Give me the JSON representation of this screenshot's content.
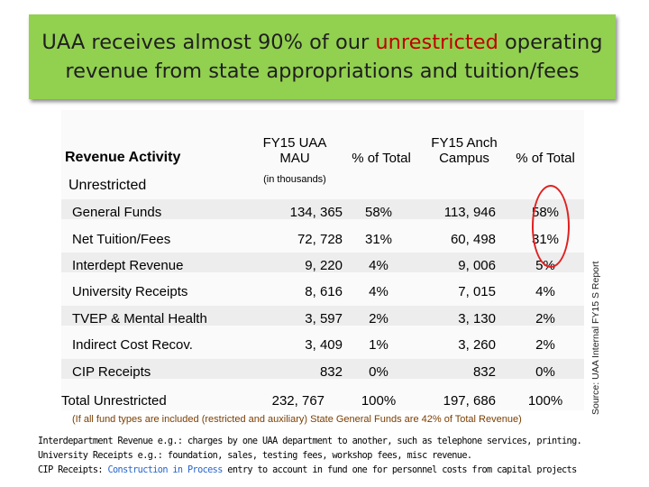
{
  "title": {
    "line1_pre": "UAA receives almost 90% of our ",
    "line1_highlight": "unrestricted",
    "line1_post": " operating",
    "line2": "revenue from state appropriations and tuition/fees"
  },
  "table": {
    "section_header": "Revenue Activity",
    "section_label": "Unrestricted",
    "col_mau_line1": "FY15 UAA",
    "col_mau_line2": "MAU",
    "col_mau_units": "(in thousands)",
    "col_pct1": "% of Total",
    "col_anch_line1": "FY15 Anch",
    "col_anch_line2": "Campus",
    "col_pct2": "% of Total",
    "rows": [
      {
        "label": "General Funds",
        "mau": "134, 365",
        "pct1": "58%",
        "anch": "113, 946",
        "pct2": "58%"
      },
      {
        "label": "Net Tuition/Fees",
        "mau": "72, 728",
        "pct1": "31%",
        "anch": "60, 498",
        "pct2": "31%"
      },
      {
        "label": "Interdept Revenue",
        "mau": "9, 220",
        "pct1": "4%",
        "anch": "9, 006",
        "pct2": "5%"
      },
      {
        "label": "University Receipts",
        "mau": "8, 616",
        "pct1": "4%",
        "anch": "7, 015",
        "pct2": "4%"
      },
      {
        "label": "TVEP & Mental Health",
        "mau": "3, 597",
        "pct1": "2%",
        "anch": "3, 130",
        "pct2": "2%"
      },
      {
        "label": "Indirect Cost Recov.",
        "mau": "3, 409",
        "pct1": "1%",
        "anch": "3, 260",
        "pct2": "2%"
      },
      {
        "label": "CIP Receipts",
        "mau": "832",
        "pct1": "0%",
        "anch": "832",
        "pct2": "0%"
      }
    ],
    "total": {
      "label": "Total Unrestricted",
      "mau": "232, 767",
      "pct1": "100%",
      "anch": "197, 686",
      "pct2": "100%"
    }
  },
  "source_note": "Source: UAA Internal FY15 S Report",
  "note": "(If all fund types are included (restricted and auxiliary) State General Funds are 42% of Total Revenue)",
  "footnotes": {
    "interdept": "Interdepartment Revenue e.g.: charges by one UAA department to another, such as telephone services, printing.",
    "univ": "University Receipts e.g.: foundation, sales, testing fees, workshop fees, misc revenue.",
    "cip_pre": "CIP Receipts: ",
    "cip_link": "Construction in Process",
    "cip_post": " entry to account in fund one for personnel costs from capital projects"
  }
}
